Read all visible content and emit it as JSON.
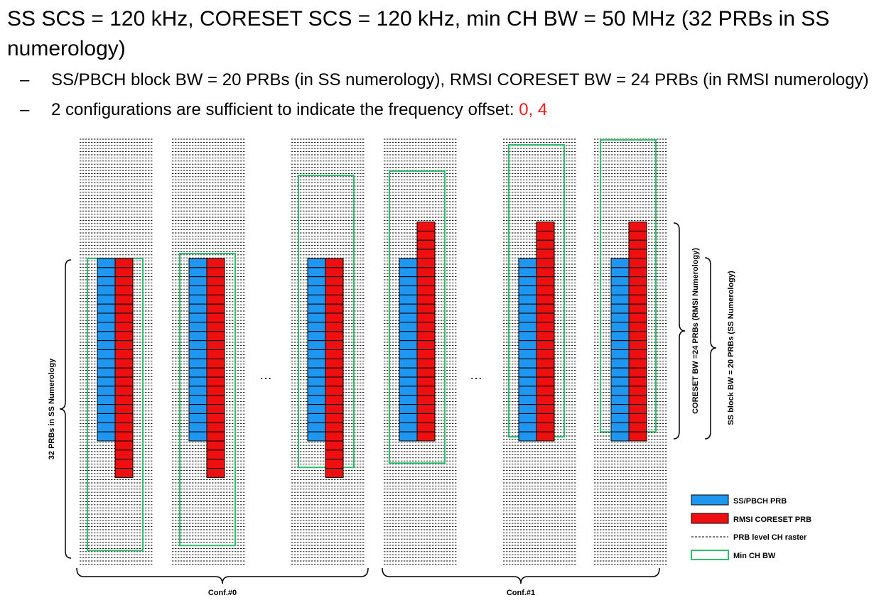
{
  "slide": {
    "title": "SS SCS = 120 kHz, CORESET SCS = 120 kHz, min CH BW = 50 MHz (32 PRBs in SS numerology)",
    "bullets": [
      {
        "dash": "–",
        "text": "SS/PBCH block BW = 20 PRBs (in SS numerology), RMSI CORESET BW = 24 PRBs (in RMSI numerology)",
        "highlight": ""
      },
      {
        "dash": "–",
        "text": "2 configurations are sufficient to indicate the frequency offset: ",
        "highlight": "0, 4"
      }
    ],
    "highlight_color": "#ee1c1c"
  },
  "diagram": {
    "ellipsis": "…",
    "labels": {
      "left_brace": "32 PRBs in SS Numerology",
      "coreset_brace": "CORESET BW  =24 PRBs (RMSI Numerology)",
      "ss_brace": "SS block BW = 20 PRBs (SS Numerology)"
    },
    "groups": [
      {
        "label": "Conf.#0"
      },
      {
        "label": "Conf.#1"
      }
    ],
    "legend": [
      {
        "label": "SS/PBCH PRB",
        "kind": "blue"
      },
      {
        "label": "RMSI CORESET PRB",
        "kind": "red"
      },
      {
        "label": "PRB level CH raster",
        "kind": "dash"
      },
      {
        "label": "Min CH BW",
        "kind": "green"
      }
    ],
    "colors": {
      "ss_pbch_prb": "#1f97f0",
      "rmsi_coreset_prb": "#ee1010",
      "min_ch_bw": "#2fbf6f",
      "raster": "#000000"
    },
    "ss_block_prbs": 20,
    "coreset_prbs": 24,
    "min_ch_bw_prbs": 32,
    "panels": [
      {
        "group": "Conf.#0",
        "coreset_offset_prbs": 0
      },
      {
        "group": "Conf.#0",
        "coreset_offset_prbs": 0
      },
      {
        "group": "Conf.#0",
        "coreset_offset_prbs": 0
      },
      {
        "group": "Conf.#1",
        "coreset_offset_prbs": 4
      },
      {
        "group": "Conf.#1",
        "coreset_offset_prbs": 4
      },
      {
        "group": "Conf.#1",
        "coreset_offset_prbs": 4
      }
    ]
  }
}
